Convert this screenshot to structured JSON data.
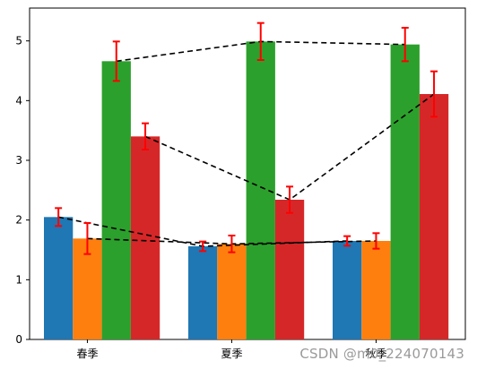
{
  "chart_data": {
    "type": "bar",
    "categories": [
      "春季",
      "夏季",
      "秋季"
    ],
    "series": [
      {
        "color": "#1f77b4",
        "values": [
          2.05,
          1.56,
          1.65
        ],
        "errors": [
          0.15,
          0.08,
          0.08
        ]
      },
      {
        "color": "#ff7f0e",
        "values": [
          1.69,
          1.6,
          1.65
        ],
        "errors": [
          0.26,
          0.14,
          0.13
        ]
      },
      {
        "color": "#2ca02c",
        "values": [
          4.66,
          4.99,
          4.94
        ],
        "errors": [
          0.33,
          0.31,
          0.28
        ]
      },
      {
        "color": "#d62728",
        "values": [
          3.4,
          2.34,
          4.11
        ],
        "errors": [
          0.22,
          0.22,
          0.38
        ]
      }
    ],
    "trend_lines": {
      "style": "dashed",
      "color": "#000000"
    },
    "error_bar_color": "#ff0000",
    "ylim": [
      0,
      5.55
    ],
    "yticks": [
      "0",
      "1",
      "2",
      "3",
      "4",
      "5"
    ],
    "title": "",
    "xlabel": "",
    "ylabel": "",
    "grid": false,
    "legend": "none"
  },
  "watermark": "CSDN @m0_224070143"
}
